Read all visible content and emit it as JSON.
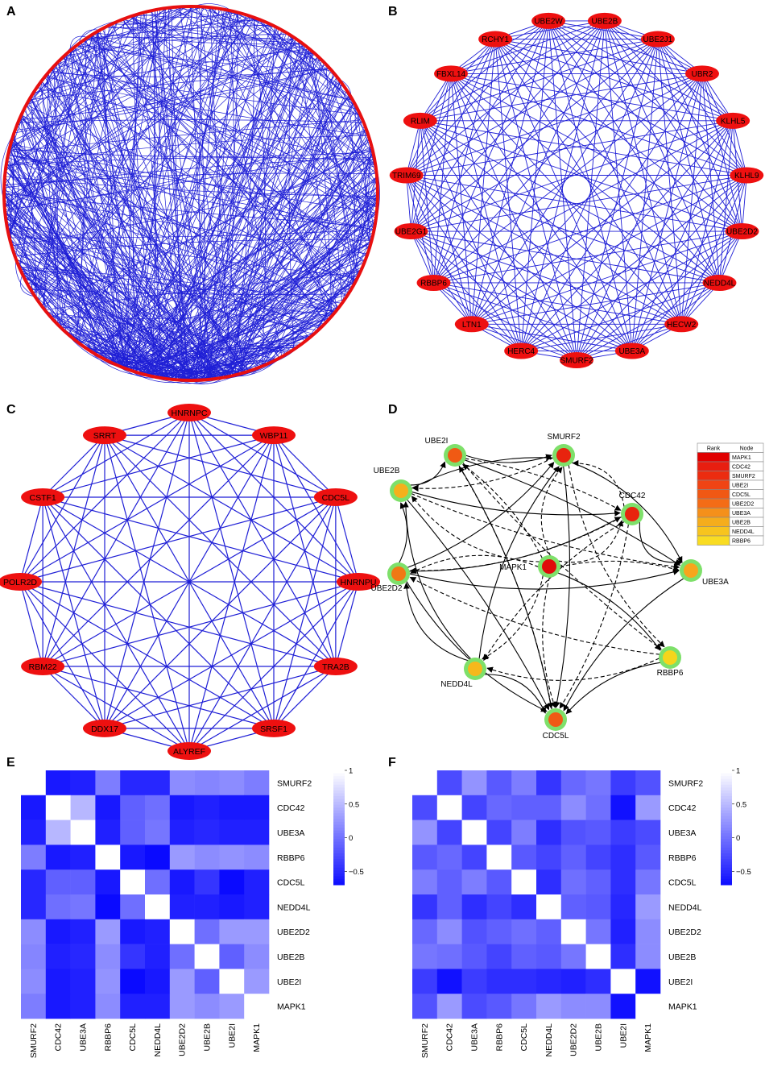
{
  "panels": {
    "a": "A",
    "b": "B",
    "c": "C",
    "d": "D",
    "e": "E",
    "f": "F"
  },
  "panel_b": {
    "nodes": [
      "UBE2W",
      "UBE2B",
      "UBE2J1",
      "UBR2",
      "KLHL5",
      "KLHL9",
      "UBE2D2",
      "NEDD4L",
      "HECW2",
      "UBE3A",
      "SMURF2",
      "HERC4",
      "LTN1",
      "RBBP6",
      "UBE2G1",
      "TRIM69",
      "RLIM",
      "FBXL14",
      "RCHY1"
    ]
  },
  "panel_c": {
    "nodes": [
      "HNRNPC",
      "WBP11",
      "CDC5L",
      "HNRNPU",
      "TRA2B",
      "SRSF1",
      "ALYREF",
      "DDX17",
      "RBM22",
      "POLR2D",
      "CSTF1",
      "SRRT"
    ]
  },
  "panel_d": {
    "nodes": [
      {
        "name": "SMURF2",
        "color": "#e8230e"
      },
      {
        "name": "CDC42",
        "color": "#e8230e"
      },
      {
        "name": "UBE3A",
        "color": "#f7a51c"
      },
      {
        "name": "RBBP6",
        "color": "#f5d51c"
      },
      {
        "name": "CDC5L",
        "color": "#f05a14"
      },
      {
        "name": "NEDD4L",
        "color": "#f5b81c"
      },
      {
        "name": "UBE2D2",
        "color": "#f07814"
      },
      {
        "name": "UBE2B",
        "color": "#f5b01c"
      },
      {
        "name": "UBE2I",
        "color": "#f05a14"
      },
      {
        "name": "MAPK1",
        "color": "#e00a0a"
      }
    ],
    "rank_table": {
      "header_rank": "Rank",
      "header_node": "Node",
      "rows": [
        {
          "node": "MAPK1",
          "color": "#e00000"
        },
        {
          "node": "CDC42",
          "color": "#e81e10"
        },
        {
          "node": "SMURF2",
          "color": "#ec2c10"
        },
        {
          "node": "UBE2I",
          "color": "#f04414"
        },
        {
          "node": "CDC5L",
          "color": "#f05814"
        },
        {
          "node": "UBE2D2",
          "color": "#f46c16"
        },
        {
          "node": "UBE3A",
          "color": "#f5901a"
        },
        {
          "node": "UBE2B",
          "color": "#f5ad1c"
        },
        {
          "node": "NEDD4L",
          "color": "#f7c41e"
        },
        {
          "node": "RBBP6",
          "color": "#f9dc22"
        }
      ]
    }
  },
  "chart_data": [
    {
      "type": "heatmap",
      "panel": "E",
      "rows": [
        "SMURF2",
        "CDC42",
        "UBE3A",
        "RBBP6",
        "CDC5L",
        "NEDD4L",
        "UBE2D2",
        "UBE2B",
        "UBE2I",
        "MAPK1"
      ],
      "cols": [
        "SMURF2",
        "CDC42",
        "UBE3A",
        "RBBP6",
        "CDC5L",
        "NEDD4L",
        "UBE2D2",
        "UBE2B",
        "UBE2I",
        "MAPK1"
      ],
      "values": [
        [
          1.0,
          -0.6,
          -0.55,
          0.1,
          -0.5,
          -0.5,
          0.2,
          0.15,
          0.2,
          0.1
        ],
        [
          -0.6,
          1.0,
          0.5,
          -0.6,
          -0.1,
          0.0,
          -0.6,
          -0.55,
          -0.6,
          -0.6
        ],
        [
          -0.55,
          0.5,
          1.0,
          -0.55,
          -0.1,
          0.05,
          -0.55,
          -0.5,
          -0.55,
          -0.55
        ],
        [
          0.1,
          -0.6,
          -0.55,
          1.0,
          -0.6,
          -0.7,
          0.3,
          0.2,
          0.25,
          0.2
        ],
        [
          -0.5,
          -0.1,
          -0.1,
          -0.6,
          1.0,
          0.0,
          -0.6,
          -0.4,
          -0.75,
          -0.55
        ],
        [
          -0.5,
          0.0,
          0.05,
          -0.7,
          0.0,
          1.0,
          -0.55,
          -0.55,
          -0.6,
          -0.55
        ],
        [
          0.2,
          -0.6,
          -0.55,
          0.3,
          -0.6,
          -0.55,
          1.0,
          0.0,
          0.3,
          0.3
        ],
        [
          0.15,
          -0.55,
          -0.5,
          0.2,
          -0.4,
          -0.55,
          0.0,
          1.0,
          -0.1,
          0.2
        ],
        [
          0.2,
          -0.6,
          -0.55,
          0.25,
          -0.75,
          -0.6,
          0.3,
          -0.1,
          1.0,
          0.3
        ],
        [
          0.1,
          -0.6,
          -0.55,
          0.2,
          -0.55,
          -0.55,
          0.3,
          0.2,
          0.3,
          1.0
        ]
      ],
      "colorbar_ticks": [
        "1",
        "0.5",
        "0",
        "−0.5"
      ],
      "colorbar_values": [
        1,
        0.5,
        0,
        -0.5
      ],
      "vmin": -0.7,
      "vmax": 1.0
    },
    {
      "type": "heatmap",
      "panel": "F",
      "rows": [
        "SMURF2",
        "CDC42",
        "UBE3A",
        "RBBP6",
        "CDC5L",
        "NEDD4L",
        "UBE2D2",
        "UBE2B",
        "UBE2I",
        "MAPK1"
      ],
      "cols": [
        "SMURF2",
        "CDC42",
        "UBE3A",
        "RBBP6",
        "CDC5L",
        "NEDD4L",
        "UBE2D2",
        "UBE2B",
        "UBE2I",
        "MAPK1"
      ],
      "values": [
        [
          1.0,
          -0.25,
          0.25,
          -0.15,
          0.1,
          -0.4,
          -0.05,
          0.05,
          -0.35,
          -0.2
        ],
        [
          -0.25,
          1.0,
          -0.3,
          -0.05,
          -0.1,
          -0.1,
          0.2,
          0.0,
          -0.65,
          0.3
        ],
        [
          0.25,
          -0.3,
          1.0,
          -0.3,
          0.1,
          -0.45,
          -0.2,
          -0.15,
          -0.35,
          -0.25
        ],
        [
          -0.15,
          -0.05,
          -0.3,
          1.0,
          -0.15,
          -0.3,
          -0.1,
          -0.3,
          -0.45,
          -0.15
        ],
        [
          0.1,
          -0.1,
          0.1,
          -0.15,
          1.0,
          -0.45,
          0.0,
          -0.1,
          -0.45,
          0.05
        ],
        [
          -0.4,
          -0.1,
          -0.45,
          -0.3,
          -0.45,
          1.0,
          -0.1,
          -0.15,
          -0.5,
          0.3
        ],
        [
          -0.05,
          0.2,
          -0.2,
          -0.1,
          0.0,
          -0.1,
          1.0,
          0.05,
          -0.55,
          0.2
        ],
        [
          0.05,
          0.0,
          -0.15,
          -0.3,
          -0.1,
          -0.15,
          0.05,
          1.0,
          -0.45,
          0.2
        ],
        [
          -0.35,
          -0.65,
          -0.35,
          -0.45,
          -0.45,
          -0.5,
          -0.55,
          -0.45,
          1.0,
          -0.65
        ],
        [
          -0.2,
          0.3,
          -0.25,
          -0.15,
          0.05,
          0.3,
          0.2,
          0.2,
          -0.65,
          1.0
        ]
      ],
      "colorbar_ticks": [
        "1",
        "0.5",
        "0",
        "−0.5"
      ],
      "colorbar_values": [
        1,
        0.5,
        0,
        -0.5
      ],
      "vmin": -0.7,
      "vmax": 1.0
    }
  ]
}
